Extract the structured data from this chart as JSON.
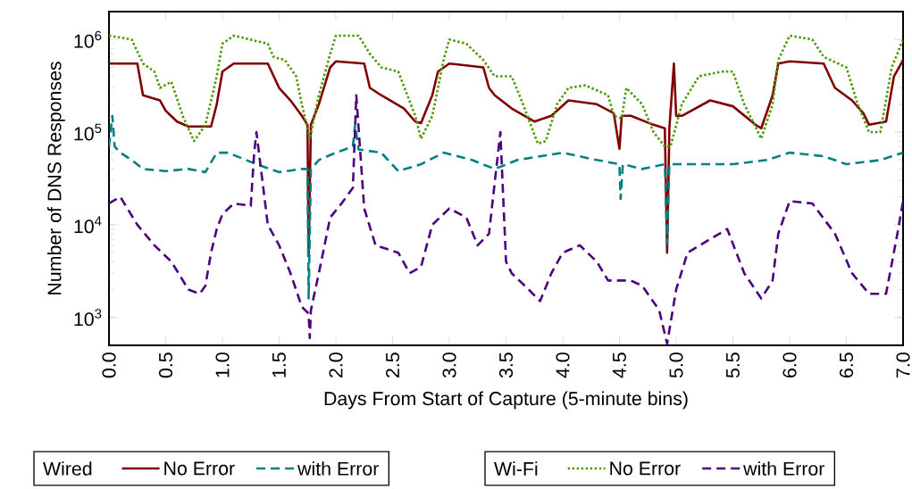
{
  "chart_data": {
    "type": "line",
    "xlabel": "Days From Start of Capture (5-minute bins)",
    "ylabel": "Number of DNS Responses",
    "legend_title": [
      "Wired",
      "Wi-Fi"
    ],
    "log": true,
    "legend": "bottom",
    "xlim": [
      0,
      7
    ],
    "ylim": [
      500,
      2000000
    ],
    "xticks": [
      {
        "value": 0,
        "label": "0.0"
      },
      {
        "value": 0.5,
        "label": "0.5"
      },
      {
        "value": 1,
        "label": "1.0"
      },
      {
        "value": 1.5,
        "label": "1.5"
      },
      {
        "value": 2,
        "label": "2.0"
      },
      {
        "value": 2.5,
        "label": "2.5"
      },
      {
        "value": 3,
        "label": "3.0"
      },
      {
        "value": 3.5,
        "label": "3.5"
      },
      {
        "value": 4,
        "label": "4.0"
      },
      {
        "value": 4.5,
        "label": "4.5"
      },
      {
        "value": 5,
        "label": "5.0"
      },
      {
        "value": 5.5,
        "label": "5.5"
      },
      {
        "value": 6,
        "label": "6.0"
      },
      {
        "value": 6.5,
        "label": "6.5"
      },
      {
        "value": 7,
        "label": "7.0"
      }
    ],
    "yticks": [
      {
        "value": 1000,
        "label": "10$^{3}$"
      },
      {
        "value": 10000,
        "label": "10$^{4}$"
      },
      {
        "value": 100000,
        "label": "10$^{5}$"
      },
      {
        "value": 1000000,
        "label": "10$^{6}$"
      }
    ],
    "series": [
      {
        "name": "No Error",
        "color": "#800000",
        "line_style": "solid",
        "x": [
          0,
          0.25,
          0.3,
          0.45,
          0.5,
          0.6,
          0.7,
          0.9,
          0.95,
          1.0,
          1.1,
          1.4,
          1.5,
          1.6,
          1.7,
          1.75,
          1.76,
          1.78,
          1.85,
          1.95,
          2.0,
          2.25,
          2.3,
          2.4,
          2.6,
          2.7,
          2.75,
          2.85,
          2.9,
          3.0,
          3.3,
          3.35,
          3.4,
          3.55,
          3.75,
          3.9,
          4.05,
          4.3,
          4.45,
          4.5,
          4.52,
          4.6,
          4.8,
          4.9,
          4.92,
          4.94,
          4.98,
          5.0,
          5.05,
          5.3,
          5.5,
          5.7,
          5.75,
          5.85,
          5.9,
          6.0,
          6.3,
          6.4,
          6.55,
          6.65,
          6.7,
          6.85,
          6.92,
          7.0
        ],
        "values": [
          550000,
          550000,
          250000,
          220000,
          170000,
          130000,
          115000,
          115000,
          200000,
          450000,
          550000,
          550000,
          300000,
          220000,
          150000,
          120000,
          4700,
          120000,
          200000,
          500000,
          580000,
          550000,
          300000,
          250000,
          180000,
          130000,
          125000,
          250000,
          450000,
          550000,
          500000,
          300000,
          250000,
          180000,
          130000,
          150000,
          220000,
          200000,
          160000,
          66000,
          150000,
          150000,
          120000,
          110000,
          5000,
          110000,
          550000,
          150000,
          150000,
          220000,
          190000,
          120000,
          110000,
          250000,
          550000,
          580000,
          550000,
          300000,
          220000,
          160000,
          120000,
          130000,
          400000,
          600000
        ]
      },
      {
        "name": "with Error",
        "color": "#008080",
        "line_style": "dashed",
        "x": [
          0,
          0.03,
          0.05,
          0.1,
          0.2,
          0.3,
          0.5,
          0.7,
          0.85,
          0.95,
          1.05,
          1.3,
          1.5,
          1.7,
          1.75,
          1.76,
          1.78,
          1.85,
          2.0,
          2.15,
          2.17,
          2.2,
          2.4,
          2.55,
          2.75,
          2.95,
          3.2,
          3.4,
          3.6,
          4.0,
          4.3,
          4.5,
          4.51,
          4.53,
          4.7,
          4.9,
          4.92,
          4.94,
          5.2,
          5.5,
          5.8,
          6.0,
          6.3,
          6.5,
          6.8,
          7.0
        ],
        "values": [
          70000,
          150000,
          70000,
          60000,
          50000,
          40000,
          38000,
          40000,
          37000,
          60000,
          60000,
          45000,
          37000,
          40000,
          40000,
          1600,
          40000,
          50000,
          60000,
          70000,
          120000,
          65000,
          60000,
          38000,
          45000,
          60000,
          50000,
          40000,
          50000,
          60000,
          50000,
          45000,
          19000,
          45000,
          40000,
          45000,
          6300,
          45000,
          45000,
          45000,
          50000,
          60000,
          55000,
          45000,
          50000,
          60000
        ]
      },
      {
        "name": "No Error",
        "color": "#4d9900",
        "line_style": "dotted",
        "x": [
          0,
          0.2,
          0.3,
          0.4,
          0.45,
          0.55,
          0.65,
          0.75,
          0.85,
          0.95,
          1.0,
          1.1,
          1.4,
          1.45,
          1.55,
          1.65,
          1.7,
          1.77,
          1.85,
          1.95,
          2.0,
          2.2,
          2.3,
          2.4,
          2.55,
          2.7,
          2.75,
          2.85,
          2.95,
          3.0,
          3.15,
          3.3,
          3.4,
          3.55,
          3.65,
          3.78,
          3.85,
          3.95,
          4.05,
          4.2,
          4.4,
          4.45,
          4.52,
          4.56,
          4.7,
          4.8,
          4.9,
          4.95,
          5.05,
          5.2,
          5.4,
          5.5,
          5.6,
          5.75,
          5.85,
          5.9,
          6.0,
          6.2,
          6.3,
          6.5,
          6.6,
          6.7,
          6.8,
          6.9,
          7.0
        ],
        "values": [
          1100000,
          1000000,
          550000,
          450000,
          300000,
          350000,
          150000,
          80000,
          120000,
          400000,
          900000,
          1100000,
          900000,
          650000,
          600000,
          400000,
          200000,
          85000,
          250000,
          700000,
          1100000,
          1100000,
          700000,
          500000,
          450000,
          150000,
          85000,
          150000,
          600000,
          1000000,
          900000,
          600000,
          400000,
          400000,
          200000,
          75000,
          80000,
          200000,
          300000,
          320000,
          250000,
          150000,
          140000,
          300000,
          200000,
          100000,
          70000,
          70000,
          200000,
          400000,
          450000,
          450000,
          200000,
          85000,
          200000,
          600000,
          1100000,
          1000000,
          650000,
          500000,
          200000,
          100000,
          100000,
          500000,
          1000000
        ]
      },
      {
        "name": "with Error",
        "color": "#4b0082",
        "line_style": "dashed",
        "x": [
          0,
          0.1,
          0.25,
          0.4,
          0.55,
          0.7,
          0.8,
          0.85,
          0.9,
          0.95,
          1.0,
          1.1,
          1.25,
          1.28,
          1.3,
          1.4,
          1.5,
          1.6,
          1.7,
          1.76,
          1.77,
          1.78,
          1.85,
          1.95,
          2.05,
          2.15,
          2.18,
          2.25,
          2.35,
          2.55,
          2.65,
          2.75,
          2.85,
          3.0,
          3.15,
          3.25,
          3.35,
          3.45,
          3.5,
          3.55,
          3.7,
          3.8,
          3.9,
          4.0,
          4.15,
          4.3,
          4.4,
          4.6,
          4.7,
          4.85,
          4.92,
          5.0,
          5.1,
          5.3,
          5.45,
          5.6,
          5.75,
          5.85,
          5.9,
          6.0,
          6.2,
          6.4,
          6.55,
          6.7,
          6.85,
          6.95,
          7.0
        ],
        "values": [
          17000,
          20000,
          10000,
          6000,
          4000,
          2000,
          1800,
          2200,
          5000,
          9000,
          13000,
          17000,
          16000,
          60000,
          100000,
          10000,
          6000,
          3000,
          1300,
          1100,
          600,
          1200,
          3000,
          12000,
          17000,
          25000,
          250000,
          15000,
          6000,
          5000,
          3000,
          3500,
          10000,
          15000,
          12000,
          6000,
          8000,
          100000,
          4000,
          3000,
          2000,
          1500,
          3000,
          5000,
          6000,
          4000,
          2500,
          2500,
          2200,
          1200,
          520,
          2000,
          5000,
          7000,
          9000,
          3000,
          1600,
          2500,
          8000,
          18000,
          17000,
          8000,
          3000,
          1800,
          1800,
          8000,
          18000
        ]
      }
    ]
  }
}
